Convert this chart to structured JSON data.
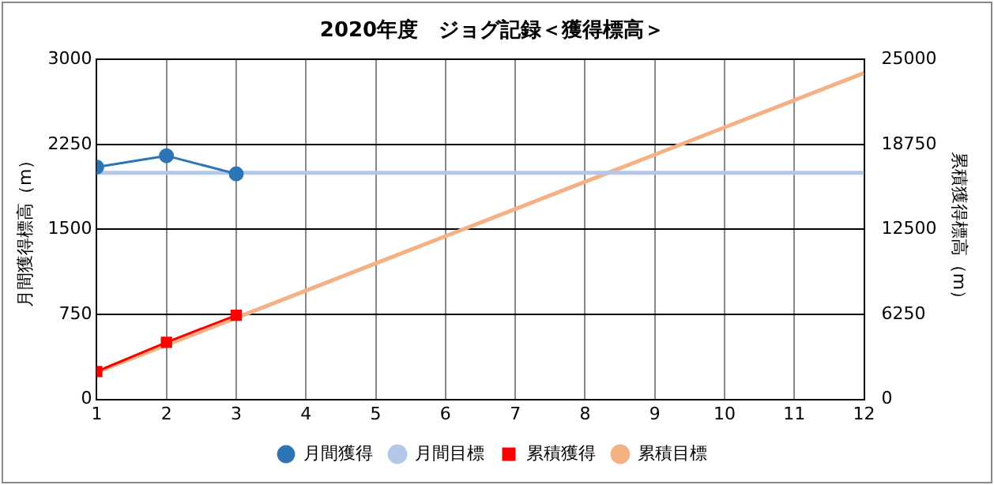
{
  "chart_data": {
    "type": "line",
    "title": "2020年度　ジョグ記録＜獲得標高＞",
    "ylabel": "月間獲得標高（m）",
    "y2label": "累積獲得標高（m）",
    "x": [
      1,
      2,
      3,
      4,
      5,
      6,
      7,
      8,
      9,
      10,
      11,
      12
    ],
    "xlim": [
      1,
      12
    ],
    "xticks": [
      1,
      2,
      3,
      4,
      5,
      6,
      7,
      8,
      9,
      10,
      11,
      12
    ],
    "ylim": [
      0,
      3000
    ],
    "yticks": [
      0,
      750,
      1500,
      2250,
      3000
    ],
    "y2lim": [
      0,
      25000
    ],
    "y2ticks": [
      0,
      6250,
      12500,
      18750,
      25000
    ],
    "grid": true,
    "legend": "bottom",
    "series": [
      {
        "name": "月間獲得",
        "color": "#2e75b6",
        "marker": "circle",
        "values": [
          2050,
          2150,
          1990,
          null,
          null,
          null,
          null,
          null,
          null,
          null,
          null,
          null
        ]
      },
      {
        "name": "月間目標",
        "color": "#b4c7e7",
        "marker": "none",
        "values": [
          2000,
          2000,
          2000,
          2000,
          2000,
          2000,
          2000,
          2000,
          2000,
          2000,
          2000,
          2000
        ]
      },
      {
        "name": "累積獲得",
        "color": "#ff0000",
        "marker": "square",
        "axis": "y2",
        "values": [
          2050,
          4200,
          6190,
          null,
          null,
          null,
          null,
          null,
          null,
          null,
          null,
          null
        ]
      },
      {
        "name": "累積目標",
        "color": "#f4b183",
        "marker": "none",
        "axis": "y2",
        "values": [
          2000,
          4000,
          6000,
          8000,
          10000,
          12000,
          14000,
          16000,
          18000,
          20000,
          22000,
          24000
        ]
      }
    ]
  }
}
